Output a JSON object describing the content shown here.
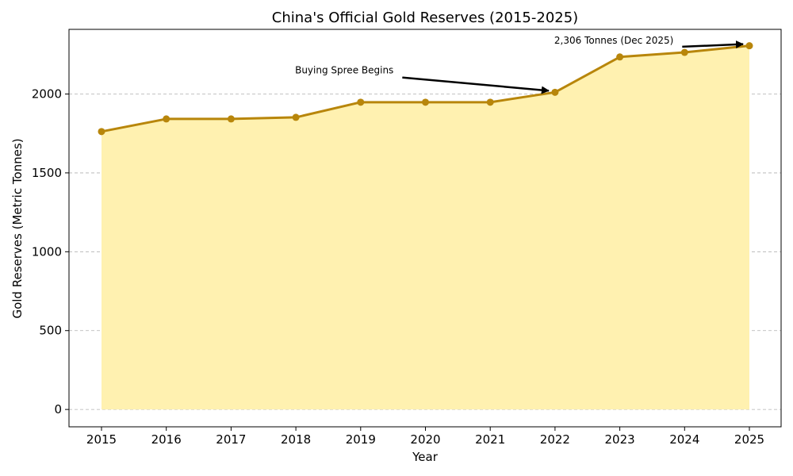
{
  "chart_data": {
    "type": "area",
    "title": "China's Official Gold Reserves (2015-2025)",
    "xlabel": "Year",
    "ylabel": "Gold Reserves (Metric Tonnes)",
    "x": [
      "2015",
      "2016",
      "2017",
      "2018",
      "2019",
      "2020",
      "2021",
      "2022",
      "2023",
      "2024",
      "2025"
    ],
    "values": [
      1762,
      1842,
      1842,
      1852,
      1948,
      1948,
      1948,
      2011,
      2235,
      2264,
      2306
    ],
    "ylim": [
      -110,
      2410
    ],
    "yticks": [
      0,
      500,
      1000,
      1500,
      2000
    ],
    "grid": true,
    "colors": {
      "line": "#b8860b",
      "fill": "#fff1b0"
    },
    "annotations": [
      {
        "text": "Buying Spree Begins",
        "x": "2022",
        "y": 2011,
        "text_x": 2018,
        "text_y": 2150
      },
      {
        "text": "2,306 Tonnes (Dec 2025)",
        "x": "2025",
        "y": 2306,
        "text_x": 2022,
        "text_y": 2340
      }
    ]
  }
}
